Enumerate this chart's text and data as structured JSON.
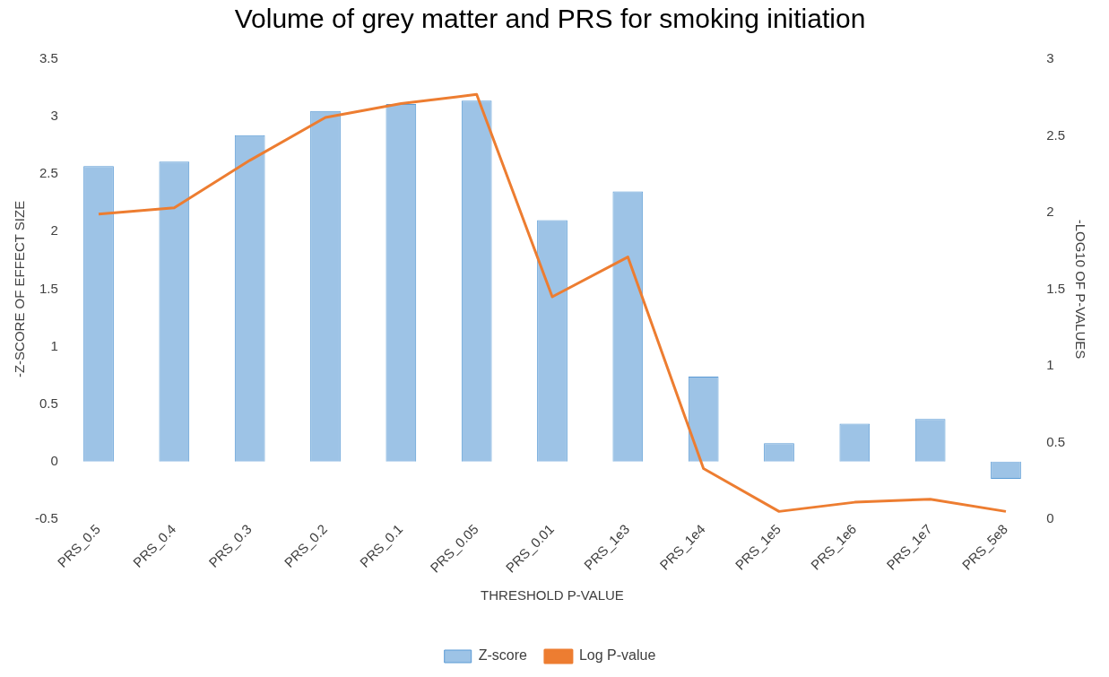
{
  "chart_data": {
    "type": "bar",
    "title": "Volume of grey matter and PRS for smoking initiation",
    "xlabel": "THRESHOLD P-VALUE",
    "ylabel": "-Z-SCORE OF EFFECT SIZE",
    "y2label": "-LOG10 OF P-VALUES",
    "categories": [
      "PRS_0.5",
      "PRS_0.4",
      "PRS_0.3",
      "PRS_0.2",
      "PRS_0.1",
      "PRS_0.05",
      "PRS_0.01",
      "PRS_1e3",
      "PRS_1e4",
      "PRS_1e5",
      "PRS_1e6",
      "PRS_1e7",
      "PRS_5e8"
    ],
    "series": [
      {
        "name": "Z-score",
        "color": "#9dc3e6",
        "values": [
          2.57,
          2.61,
          2.84,
          3.05,
          3.11,
          3.14,
          2.1,
          2.35,
          0.74,
          0.16,
          0.33,
          0.37,
          -0.15
        ]
      },
      {
        "name": "Log P-value",
        "type": "line",
        "axis": "y2",
        "color": "#ed7d31",
        "values": [
          1.99,
          2.03,
          2.34,
          2.62,
          2.71,
          2.77,
          1.45,
          1.71,
          0.33,
          0.05,
          0.11,
          0.13,
          0.05
        ]
      }
    ],
    "ylim": [
      -0.5,
      3.5
    ],
    "yticks": [
      -0.5,
      0,
      0.5,
      1,
      1.5,
      2,
      2.5,
      3,
      3.5
    ],
    "y2lim": [
      0,
      3
    ],
    "y2ticks": [
      0,
      0.5,
      1,
      1.5,
      2,
      2.5,
      3
    ],
    "legend": "bottom",
    "grid": false,
    "marker": "none",
    "line_style": "solid"
  }
}
